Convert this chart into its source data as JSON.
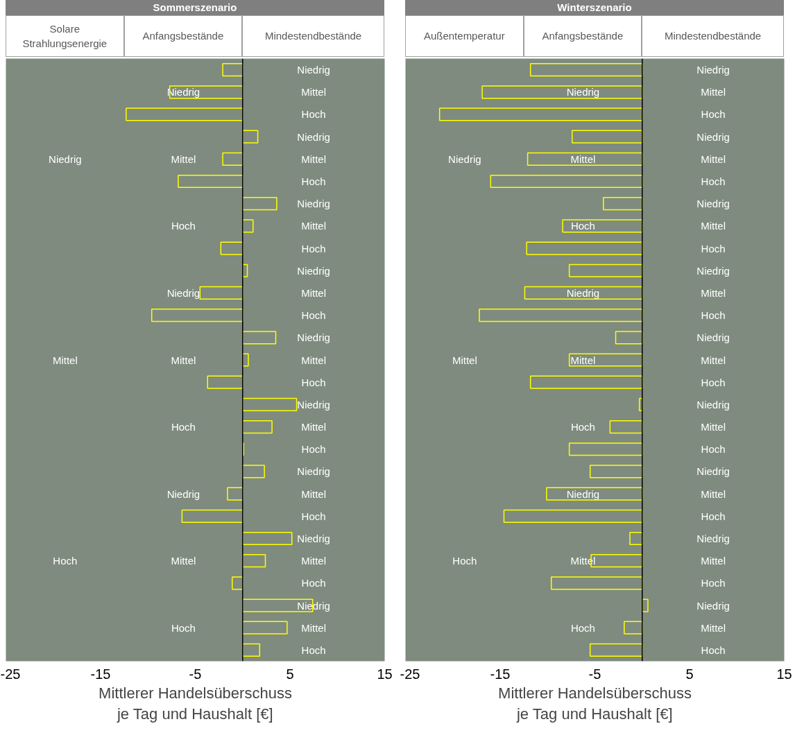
{
  "chart_data": [
    {
      "type": "bar",
      "orientation": "horizontal",
      "title": "Sommerszenario",
      "xlabel": "Mittlerer Handelsüberschuss\nje Tag und Haushalt [€]",
      "tick_labels": "x",
      "xlim": [
        -25,
        15
      ],
      "xticks": [
        -25,
        -15,
        -5,
        5,
        15
      ],
      "categories": [
        "Niedrig",
        "Mittel",
        "Hoch",
        "Niedrig",
        "Mittel",
        "Hoch",
        "Niedrig",
        "Mittel",
        "Hoch",
        "Niedrig",
        "Mittel",
        "Hoch",
        "Niedrig",
        "Mittel",
        "Hoch",
        "Niedrig",
        "Mittel",
        "Hoch",
        "Niedrig",
        "Mittel",
        "Hoch",
        "Niedrig",
        "Mittel",
        "Hoch",
        "Niedrig",
        "Mittel",
        "Hoch"
      ],
      "annotations": [
        "Solare\nStrahlungsenergie",
        "Anfangsbestände",
        "Mindestendbestände",
        "Niedrig",
        "Mittel",
        "Hoch",
        "Niedrig",
        "Mittel",
        "Hoch",
        "Niedrig",
        "Mittel",
        "Hoch",
        "Niedrig",
        "Mittel",
        "Hoch"
      ],
      "series": [
        {
          "color": "#ffff00",
          "values": [
            -2.1,
            -7.7,
            -12.3,
            1.6,
            -2.1,
            -6.8,
            3.6,
            1.1,
            -2.3,
            0.5,
            -4.5,
            -9.6,
            3.5,
            0.6,
            -3.7,
            5.7,
            3.1,
            0.1,
            2.3,
            -1.6,
            -6.4,
            5.2,
            2.4,
            -1.1,
            7.4,
            4.7,
            1.8
          ]
        }
      ]
    },
    {
      "type": "bar",
      "orientation": "horizontal",
      "title": "Winterszenario",
      "xlabel": "Mittlerer Handelsüberschuss\nje Tag und Haushalt [€]",
      "tick_labels": "x",
      "xlim": [
        -25,
        15
      ],
      "xticks": [
        -25,
        -15,
        -5,
        5,
        15
      ],
      "categories": [
        "Niedrig",
        "Mittel",
        "Hoch",
        "Niedrig",
        "Mittel",
        "Hoch",
        "Niedrig",
        "Mittel",
        "Hoch",
        "Niedrig",
        "Mittel",
        "Hoch",
        "Niedrig",
        "Mittel",
        "Hoch",
        "Niedrig",
        "Mittel",
        "Hoch",
        "Niedrig",
        "Mittel",
        "Hoch",
        "Niedrig",
        "Mittel",
        "Hoch",
        "Niedrig",
        "Mittel",
        "Hoch"
      ],
      "annotations": [
        "Außentemperatur",
        "Anfangsbestände",
        "Mindestendbestände",
        "Niedrig",
        "Mittel",
        "Hoch",
        "Niedrig",
        "Mittel",
        "Hoch",
        "Niedrig",
        "Mittel",
        "Hoch",
        "Niedrig",
        "Mittel",
        "Hoch"
      ],
      "series": [
        {
          "color": "#ffff00",
          "values": [
            -11.8,
            -16.9,
            -21.4,
            -7.4,
            -12.1,
            -16.0,
            -4.1,
            -8.4,
            -12.2,
            -7.7,
            -12.4,
            -17.2,
            -2.8,
            -7.7,
            -11.8,
            -0.3,
            -3.4,
            -7.7,
            -5.5,
            -10.1,
            -14.6,
            -1.3,
            -5.4,
            -9.6,
            0.6,
            -1.9,
            -5.5
          ]
        }
      ]
    }
  ]
}
